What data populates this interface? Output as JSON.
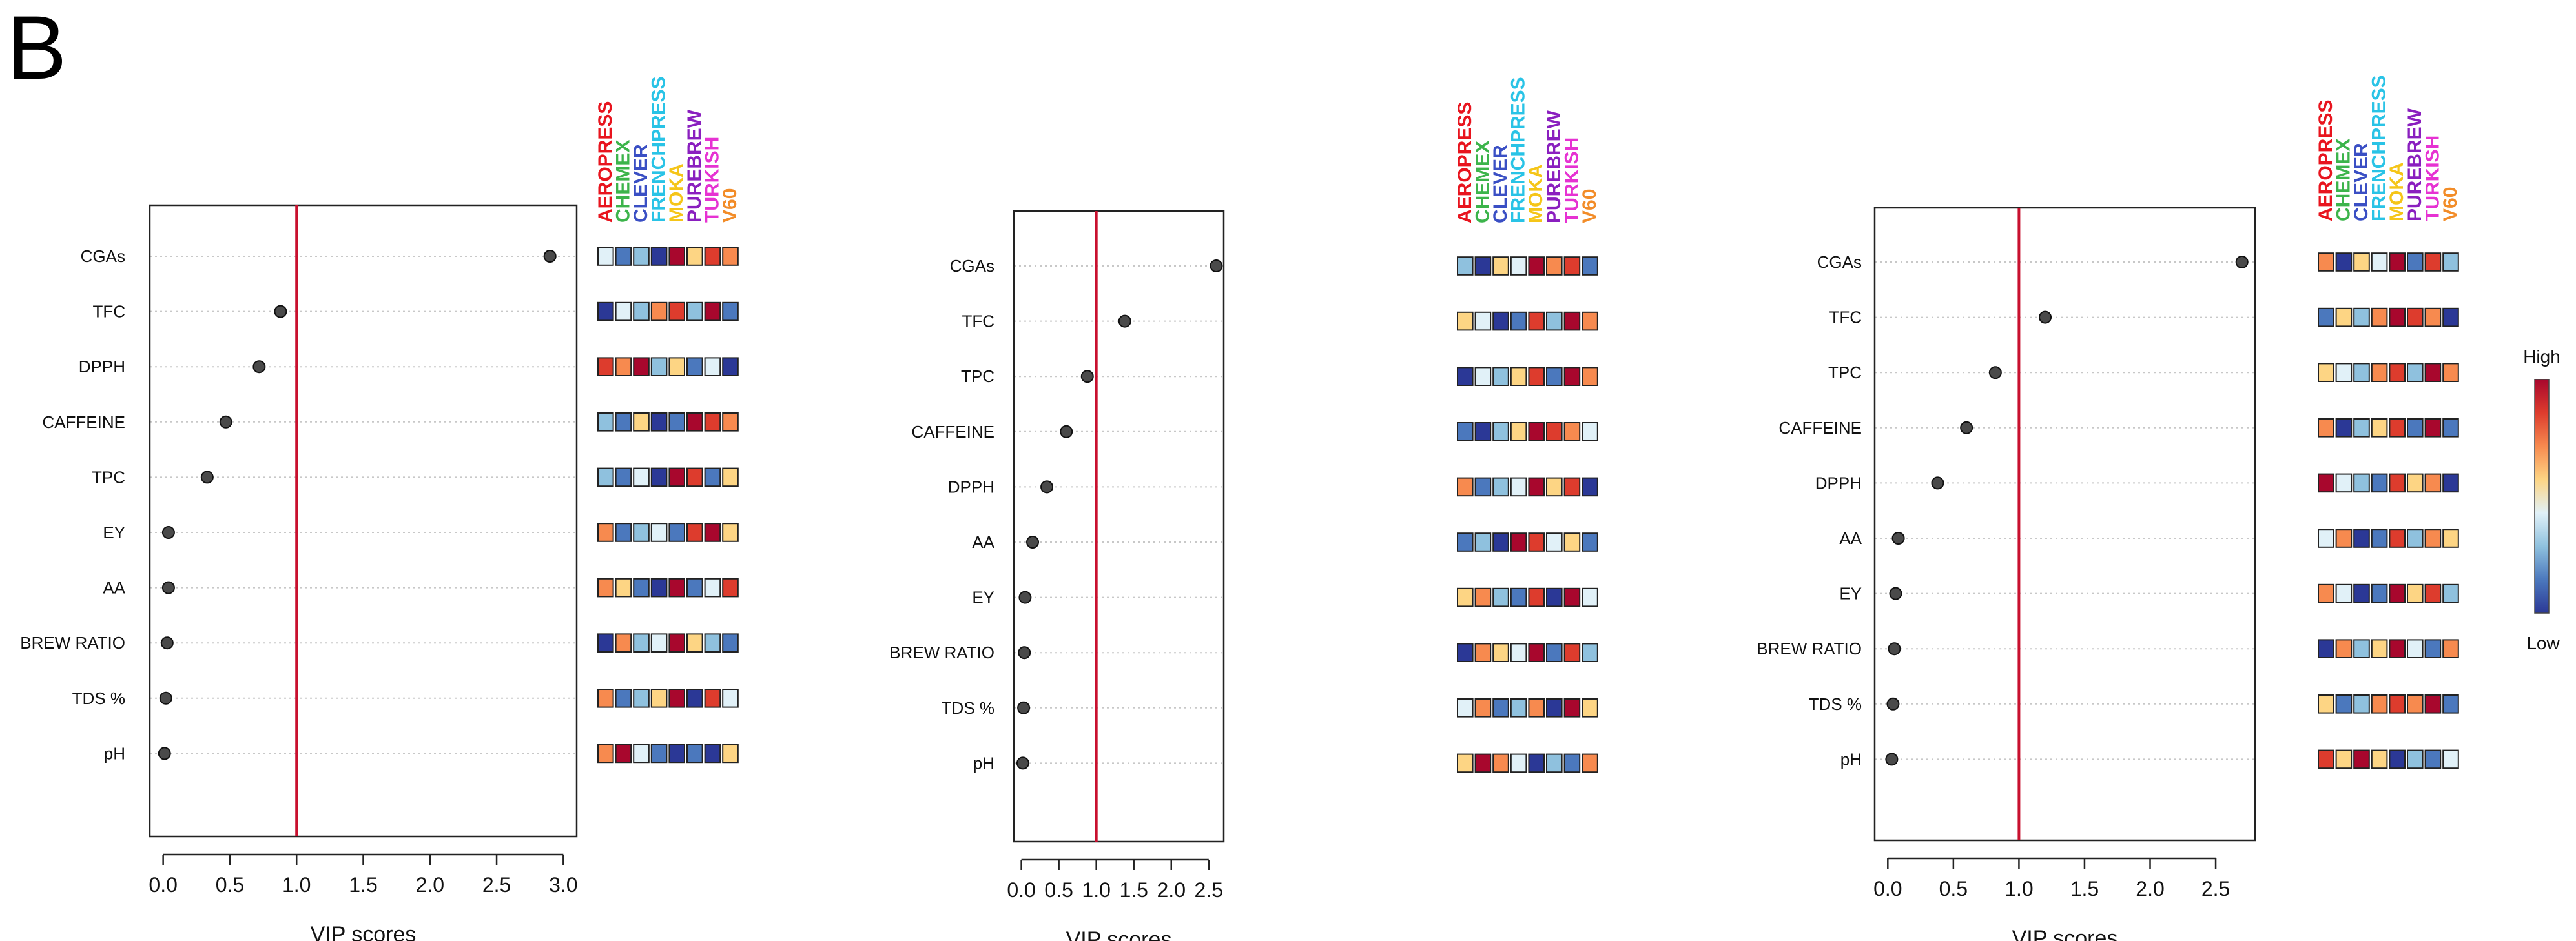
{
  "panel_label": "B",
  "methods": [
    {
      "name": "AEROPRESS",
      "color": "#e8141e"
    },
    {
      "name": "CHEMEX",
      "color": "#3cb44b"
    },
    {
      "name": "CLEVER",
      "color": "#3a4fc4"
    },
    {
      "name": "FRENCHPRESS",
      "color": "#29c3e6"
    },
    {
      "name": "MOKA",
      "color": "#f5c518"
    },
    {
      "name": "PUREBREW",
      "color": "#8a1fbf"
    },
    {
      "name": "TURKISH",
      "color": "#e632d2"
    },
    {
      "name": "V60",
      "color": "#f28c28"
    }
  ],
  "heat_palette": {
    "1": "#2b3896",
    "2": "#4b78bd",
    "3": "#8fc1de",
    "4": "#e1f1f8",
    "5": "#fdd584",
    "6": "#f78a4f",
    "7": "#dd3c2d",
    "8": "#a8072d"
  },
  "threshold": 1.0,
  "colorbar": {
    "high_label": "High",
    "low_label": "Low"
  },
  "chart_data": [
    {
      "type": "dot",
      "xlabel": "VIP scores",
      "xlim": [
        -0.1,
        3.1
      ],
      "ticks": [
        0.0,
        0.5,
        1.0,
        1.5,
        2.0,
        2.5,
        3.0
      ],
      "tick_labels": [
        "0.0",
        "0.5",
        "1.0",
        "1.5",
        "2.0",
        "2.5",
        "3.0"
      ],
      "variables": [
        "CGAs",
        "TFC",
        "DPPH",
        "CAFFEINE",
        "TPC",
        "EY",
        "AA",
        "BREW RATIO",
        "TDS %",
        "pH"
      ],
      "values": [
        2.9,
        0.88,
        0.72,
        0.47,
        0.33,
        0.04,
        0.04,
        0.03,
        0.02,
        0.01
      ],
      "heatmap": [
        [
          4,
          2,
          3,
          1,
          8,
          5,
          7,
          6
        ],
        [
          1,
          4,
          3,
          6,
          7,
          3,
          8,
          2
        ],
        [
          7,
          6,
          8,
          3,
          5,
          2,
          4,
          1
        ],
        [
          3,
          2,
          5,
          1,
          2,
          8,
          7,
          6
        ],
        [
          3,
          2,
          4,
          1,
          8,
          7,
          2,
          5
        ],
        [
          6,
          2,
          3,
          4,
          2,
          7,
          8,
          5
        ],
        [
          6,
          5,
          2,
          1,
          8,
          2,
          4,
          7
        ],
        [
          1,
          6,
          3,
          4,
          8,
          5,
          3,
          2
        ],
        [
          6,
          2,
          3,
          5,
          8,
          1,
          7,
          4
        ],
        [
          6,
          8,
          4,
          2,
          1,
          2,
          1,
          5
        ]
      ]
    },
    {
      "type": "dot",
      "xlabel": "VIP scores",
      "xlim": [
        -0.1,
        2.7
      ],
      "ticks": [
        0.0,
        0.5,
        1.0,
        1.5,
        2.0,
        2.5
      ],
      "tick_labels": [
        "0.0",
        "0.5",
        "1.0",
        "1.5",
        "2.0",
        "2.5"
      ],
      "variables": [
        "CGAs",
        "TFC",
        "TPC",
        "CAFFEINE",
        "DPPH",
        "AA",
        "EY",
        "BREW RATIO",
        "TDS %",
        "pH"
      ],
      "values": [
        2.6,
        1.38,
        0.88,
        0.6,
        0.34,
        0.15,
        0.05,
        0.04,
        0.03,
        0.02
      ],
      "heatmap": [
        [
          3,
          1,
          5,
          4,
          8,
          6,
          7,
          2
        ],
        [
          5,
          4,
          1,
          2,
          7,
          3,
          8,
          6
        ],
        [
          1,
          4,
          3,
          5,
          7,
          2,
          8,
          6
        ],
        [
          2,
          1,
          3,
          5,
          8,
          7,
          6,
          4
        ],
        [
          6,
          2,
          3,
          4,
          8,
          5,
          7,
          1
        ],
        [
          2,
          3,
          1,
          8,
          7,
          4,
          5,
          2
        ],
        [
          5,
          6,
          3,
          2,
          7,
          1,
          8,
          4
        ],
        [
          1,
          6,
          5,
          4,
          8,
          2,
          7,
          3
        ],
        [
          4,
          6,
          2,
          3,
          6,
          1,
          8,
          5
        ],
        [
          5,
          8,
          6,
          4,
          1,
          3,
          2,
          6
        ]
      ]
    },
    {
      "type": "dot",
      "xlabel": "VIP scores",
      "xlim": [
        -0.1,
        2.8
      ],
      "ticks": [
        0.0,
        0.5,
        1.0,
        1.5,
        2.0,
        2.5
      ],
      "tick_labels": [
        "0.0",
        "0.5",
        "1.0",
        "1.5",
        "2.0",
        "2.5"
      ],
      "variables": [
        "CGAs",
        "TFC",
        "TPC",
        "CAFFEINE",
        "DPPH",
        "AA",
        "EY",
        "BREW RATIO",
        "TDS %",
        "pH"
      ],
      "values": [
        2.7,
        1.2,
        0.82,
        0.6,
        0.38,
        0.08,
        0.06,
        0.05,
        0.04,
        0.03
      ],
      "heatmap": [
        [
          6,
          1,
          5,
          4,
          8,
          2,
          7,
          3
        ],
        [
          2,
          5,
          3,
          6,
          8,
          7,
          6,
          1
        ],
        [
          5,
          4,
          3,
          6,
          7,
          3,
          8,
          6
        ],
        [
          6,
          1,
          3,
          5,
          7,
          2,
          8,
          2
        ],
        [
          8,
          4,
          3,
          2,
          7,
          5,
          6,
          1
        ],
        [
          4,
          6,
          1,
          2,
          7,
          3,
          6,
          5
        ],
        [
          6,
          4,
          1,
          2,
          8,
          5,
          7,
          3
        ],
        [
          1,
          6,
          3,
          5,
          8,
          4,
          2,
          6
        ],
        [
          5,
          2,
          3,
          6,
          7,
          6,
          8,
          2
        ],
        [
          7,
          5,
          8,
          5,
          1,
          3,
          2,
          4
        ]
      ]
    }
  ]
}
